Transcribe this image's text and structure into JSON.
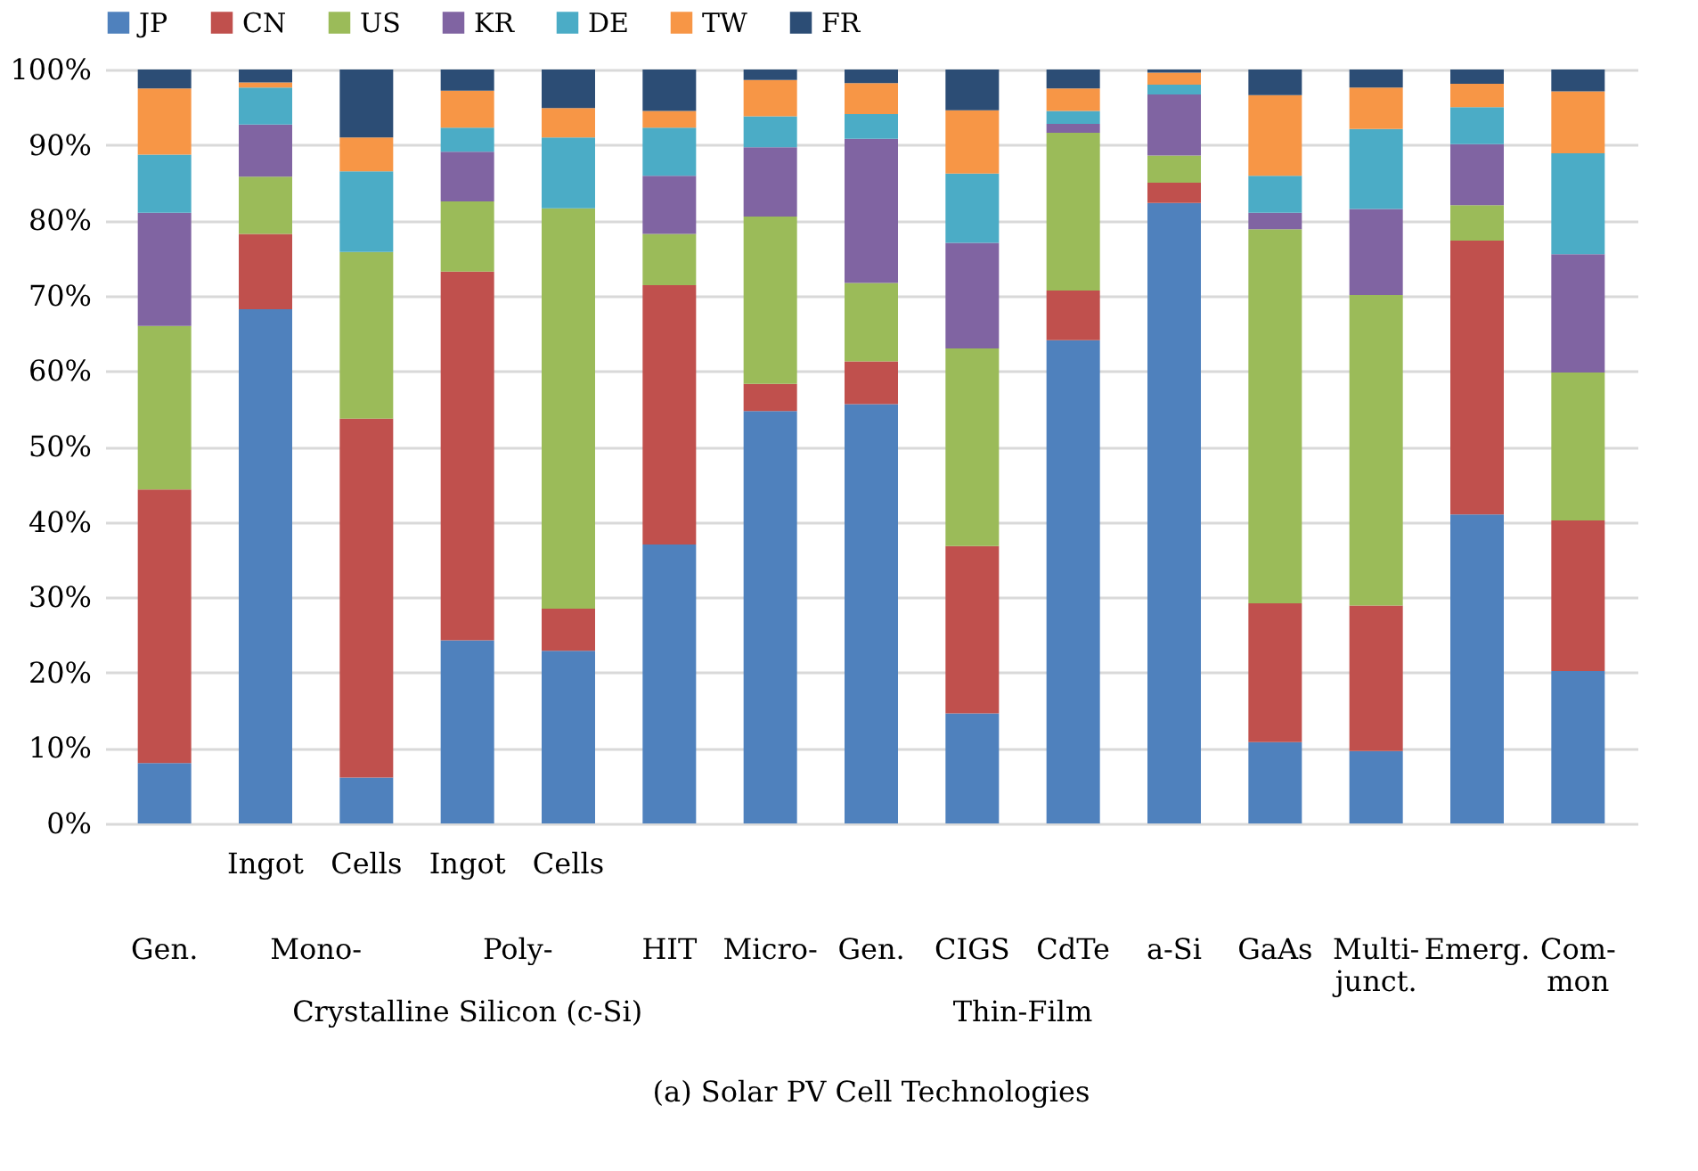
{
  "chart_data": {
    "type": "bar",
    "stacked": true,
    "legend": "top",
    "grid": "y",
    "categories": [
      "Gen.",
      "Ingot",
      "Cells",
      "Ingot",
      "Cells",
      "HIT",
      "Micro-",
      "Gen.",
      "CIGS",
      "CdTe",
      "a-Si",
      "GaAs",
      "Multi-\njunct.",
      "Emerg.",
      "Com-\nmon"
    ],
    "series": [
      {
        "name": "JP",
        "color": "#4f81bd",
        "values": [
          8,
          68.2,
          6.1,
          24.3,
          22.9,
          37,
          54.7,
          55.6,
          14.6,
          64.1,
          82.3,
          10.8,
          9.6,
          41,
          20.2
        ]
      },
      {
        "name": "CN",
        "color": "#c0504d",
        "values": [
          36.3,
          10,
          47.6,
          48.9,
          5.6,
          34.4,
          3.6,
          5.7,
          22.2,
          6.6,
          2.7,
          18.4,
          19.3,
          36.3,
          20
        ]
      },
      {
        "name": "US",
        "color": "#9bbb59",
        "values": [
          21.7,
          7.6,
          22.1,
          9.3,
          53.1,
          6.8,
          22.2,
          10.4,
          26.2,
          20.9,
          3.6,
          49.6,
          41.2,
          4.7,
          19.6
        ]
      },
      {
        "name": "KR",
        "color": "#8064a2",
        "values": [
          15,
          6.9,
          0,
          6.6,
          0,
          7.7,
          9.2,
          19.1,
          14,
          1.2,
          8.1,
          2.2,
          11.4,
          8.1,
          15.7
        ]
      },
      {
        "name": "DE",
        "color": "#4bacc6",
        "values": [
          7.7,
          4.9,
          10.7,
          3.2,
          9.4,
          6.4,
          4.1,
          3.3,
          9.2,
          1.7,
          1.3,
          4.9,
          10.6,
          4.9,
          13.4
        ]
      },
      {
        "name": "TW",
        "color": "#f79646",
        "values": [
          8.8,
          0.7,
          4.5,
          4.9,
          3.9,
          2.2,
          4.8,
          4.1,
          8.4,
          3,
          1.6,
          10.7,
          5.5,
          3.1,
          8.2
        ]
      },
      {
        "name": "FR",
        "color": "#2c4d75",
        "values": [
          2.5,
          1.7,
          9,
          2.8,
          5.1,
          5.5,
          1.4,
          1.8,
          5.4,
          2.5,
          0.4,
          3.4,
          2.4,
          1.9,
          2.9
        ]
      }
    ],
    "ylim": [
      0,
      100
    ],
    "yticks": [
      {
        "value": 0,
        "label": "0%"
      },
      {
        "value": 10,
        "label": "10%"
      },
      {
        "value": 20,
        "label": "20%"
      },
      {
        "value": 30,
        "label": "30%"
      },
      {
        "value": 40,
        "label": "40%"
      },
      {
        "value": 50,
        "label": "50%"
      },
      {
        "value": 60,
        "label": "60%"
      },
      {
        "value": 70,
        "label": "70%"
      },
      {
        "value": 80,
        "label": "80%"
      },
      {
        "value": 90,
        "label": "90%"
      },
      {
        "value": 100,
        "label": "100%"
      }
    ],
    "annotations": [
      "Mono-",
      "Poly-",
      "Crystalline Silicon (c-Si)",
      "Thin-Film",
      "(a) Solar PV Cell Technologies"
    ]
  }
}
